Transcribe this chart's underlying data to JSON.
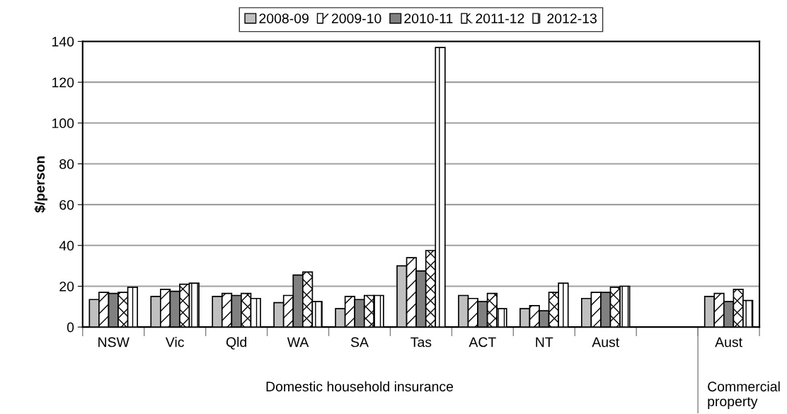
{
  "chart_data": {
    "type": "bar",
    "ylabel": "$/person",
    "categories": [
      "NSW",
      "Vic",
      "Qld",
      "WA",
      "SA",
      "Tas",
      "ACT",
      "NT",
      "Aust",
      null,
      "Aust"
    ],
    "series": [
      {
        "name": "2008-09",
        "color": "#c0c0c0",
        "values": [
          13.5,
          15,
          15,
          12,
          9,
          30,
          15.5,
          9,
          14,
          null,
          15
        ]
      },
      {
        "name": "2009-10",
        "color": "#ffffff",
        "values": [
          17,
          18.5,
          16.5,
          15.5,
          15,
          34,
          14,
          10.5,
          17,
          null,
          16.5
        ]
      },
      {
        "name": "2010-11",
        "color": "#808080",
        "values": [
          16.5,
          17.5,
          15.5,
          25.5,
          13.5,
          27.5,
          12.5,
          8,
          17,
          null,
          12.5
        ]
      },
      {
        "name": "2011-12",
        "color": "#ffffff",
        "values": [
          17,
          21,
          16.5,
          27,
          15.5,
          37.5,
          16.5,
          17,
          19.5,
          null,
          18.5
        ]
      },
      {
        "name": "2012-13",
        "color": "#ffffff",
        "values": [
          19.5,
          21.5,
          14,
          12.5,
          15.5,
          137,
          9,
          21.5,
          20,
          null,
          13
        ]
      }
    ],
    "ylim": [
      0,
      140
    ],
    "yticks": [
      0,
      20,
      40,
      60,
      80,
      100,
      120,
      140
    ],
    "grid": "y",
    "legend": "top",
    "annotations": [
      "Domestic household insurance",
      "Commercial property"
    ]
  }
}
